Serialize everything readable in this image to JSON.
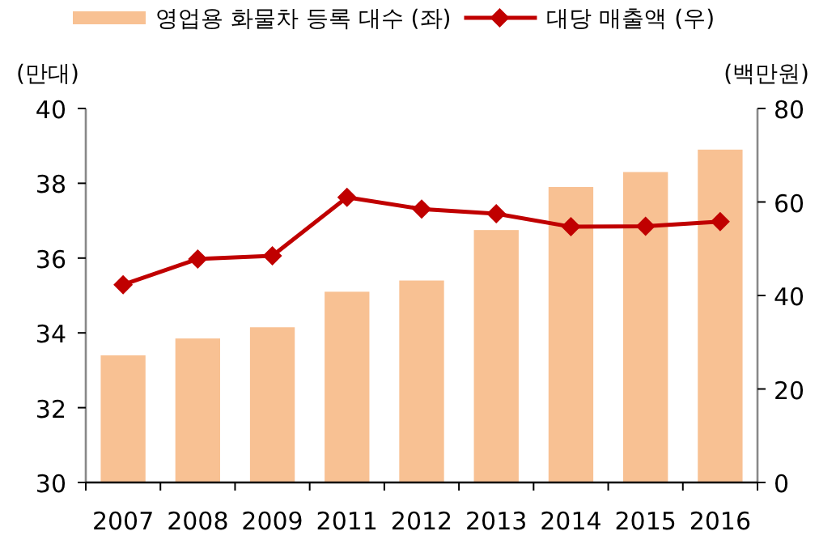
{
  "chart_data": {
    "type": "bar",
    "categories": [
      "2007",
      "2008",
      "2009",
      "2011",
      "2012",
      "2013",
      "2014",
      "2015",
      "2016"
    ],
    "series": [
      {
        "name": "영업용 화물차 등록 대수 (좌)",
        "color": "#f8c193",
        "values": [
          33.4,
          33.85,
          34.15,
          35.1,
          35.4,
          36.75,
          37.9,
          38.3,
          38.9
        ]
      },
      {
        "name": "대당 매출액 (우)",
        "type": "line",
        "axis": "y2",
        "color": "#c00000",
        "marker": "diamond",
        "values": [
          42.3,
          47.8,
          48.5,
          61,
          58.5,
          57.5,
          54.7,
          54.8,
          55.8
        ]
      }
    ],
    "ylabel": "(만대)",
    "y2label": "(백만원)",
    "ylim": [
      30,
      40
    ],
    "yticks": [
      30,
      32,
      34,
      36,
      38,
      40
    ],
    "y2lim": [
      0,
      80
    ],
    "y2ticks": [
      0,
      20,
      40,
      60,
      80
    ],
    "legend": "top",
    "grid": false
  }
}
